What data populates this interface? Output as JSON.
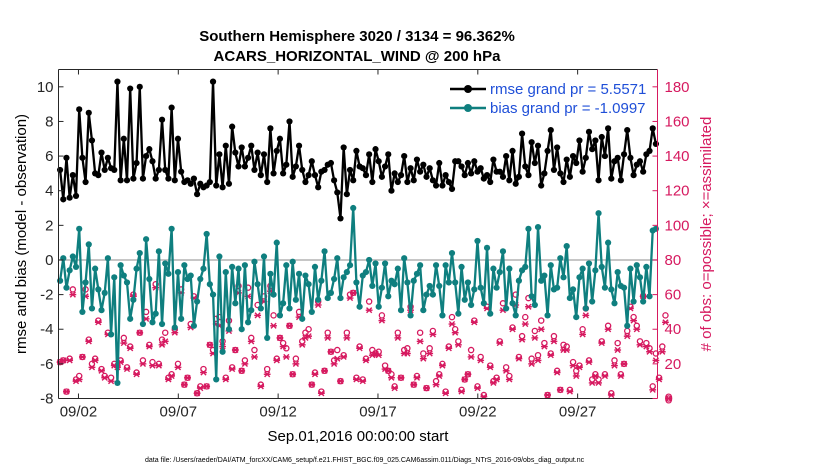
{
  "chart_data": {
    "type": "line",
    "title_line1": "Southern Hemisphere 3020 / 3134 = 96.362%",
    "title_line2": "ACARS_HORIZONTAL_WIND @ 200 hPa",
    "xlabel": "Sep.01,2016 00:00:00 start",
    "ylabel_left": "rmse and bias (model - observation)",
    "ylabel_right": "# of obs: o=possible; ×=assimilated",
    "x_ticks": [
      "09/02",
      "09/07",
      "09/12",
      "09/17",
      "09/22",
      "09/27"
    ],
    "x_tick_days": [
      2,
      7,
      12,
      17,
      22,
      27
    ],
    "xlim": [
      1.0,
      31.0
    ],
    "ylim_left": [
      -8,
      11
    ],
    "y_ticks_left": [
      -8,
      -6,
      -4,
      -2,
      0,
      2,
      4,
      6,
      8,
      10
    ],
    "ylim_right": [
      0,
      190
    ],
    "y_ticks_right": [
      0,
      20,
      40,
      60,
      80,
      100,
      120,
      140,
      160,
      180
    ],
    "legend": {
      "position": "top-right",
      "rmse_label": "rmse grand pr = 5.5571",
      "bias_label": "bias grand pr = -1.0997"
    },
    "zero_line": 0,
    "grid": false,
    "footer": "data file: /Users/raeder/DAI/ATM_forcXX/CAM6_setup/f.e21.FHIST_BGC.f09_025.CAM6assim.011/Diags_NTrS_2016-09/obs_diag_output.nc",
    "colors": {
      "rmse": "#000000",
      "bias": "#0f7f7f",
      "obs": "#d6195f",
      "right_axis": "#d6195f",
      "legend_text": "#1f4fd8",
      "zero_line": "#b4b4b4"
    },
    "series": [
      {
        "name": "rmse",
        "axis": "left",
        "values": [
          5.2,
          3.5,
          5.9,
          3.6,
          4.9,
          3.7,
          8.7,
          5.9,
          4.5,
          8.5,
          6.9,
          5.0,
          4.9,
          6.2,
          5.2,
          5.9,
          5.3,
          5.2,
          10.3,
          4.6,
          7.0,
          4.6,
          9.9,
          4.7,
          5.6,
          10.0,
          4.7,
          6.0,
          6.4,
          5.7,
          4.7,
          5.2,
          8.1,
          5.2,
          4.7,
          8.8,
          4.6,
          7.0,
          5.1,
          4.5,
          4.6,
          4.4,
          4.7,
          3.8,
          4.4,
          4.2,
          4.3,
          4.5,
          10.3,
          4.3,
          6.1,
          4.2,
          6.6,
          4.4,
          7.7,
          6.2,
          5.4,
          6.5,
          5.4,
          5.9,
          6.6,
          5.2,
          6.2,
          4.9,
          6.1,
          4.5,
          7.6,
          5.0,
          6.3,
          7.0,
          5.0,
          5.5,
          8.0,
          4.8,
          5.4,
          6.6,
          5.2,
          4.5,
          4.9,
          5.7,
          4.9,
          4.2,
          5.1,
          5.2,
          5.5,
          5.6,
          4.6,
          3.9,
          2.4,
          6.5,
          3.8,
          5.2,
          4.6,
          6.3,
          5.4,
          5.3,
          4.9,
          6.1,
          4.5,
          6.4,
          5.7,
          4.8,
          5.4,
          6.1,
          4.0,
          5.0,
          4.5,
          4.9,
          6.0,
          4.5,
          5.3,
          4.6,
          5.8,
          5.1,
          5.5,
          4.8,
          5.3,
          4.6,
          4.3,
          5.6,
          4.3,
          4.9,
          4.5,
          4.1,
          5.7,
          5.7,
          5.4,
          4.9,
          5.6,
          5.0,
          5.7,
          5.1,
          5.3,
          4.7,
          4.9,
          4.5,
          5.8,
          5.1,
          5.1,
          4.8,
          6.0,
          4.6,
          6.3,
          4.4,
          4.8,
          7.3,
          5.4,
          4.9,
          6.8,
          5.6,
          6.6,
          4.3,
          5.0,
          6.3,
          7.5,
          5.2,
          6.5,
          5.0,
          4.5,
          5.8,
          4.8,
          6.0,
          5.6,
          6.9,
          5.1,
          5.9,
          7.4,
          6.4,
          6.9,
          4.6,
          7.1,
          6.0,
          7.6,
          4.7,
          5.7,
          5.9,
          4.6,
          6.1,
          7.5,
          5.9,
          4.9,
          5.5,
          5.7,
          5.1,
          6.1,
          6.3,
          7.6,
          6.7
        ]
      },
      {
        "name": "bias",
        "axis": "left",
        "values": [
          -1.2,
          0.1,
          -1.6,
          -0.6,
          0.2,
          -0.4,
          1.8,
          -3.0,
          -1.3,
          0.9,
          -2.8,
          -0.5,
          -1.7,
          -2.9,
          -1.9,
          0.1,
          -4.3,
          -1.0,
          -7.1,
          -0.3,
          -0.9,
          -1.3,
          -3.4,
          -2.3,
          -0.5,
          0.4,
          -3.7,
          1.2,
          -1.1,
          -3.6,
          -3.1,
          0.5,
          -3.7,
          -0.2,
          -0.8,
          1.8,
          -3.9,
          -0.7,
          -3.4,
          -0.3,
          -1.1,
          -0.9,
          -3.8,
          -2.4,
          -1.1,
          -0.5,
          1.5,
          -1.4,
          -2.0,
          -6.9,
          0.2,
          -5.3,
          -0.7,
          -4.0,
          -0.4,
          -2.5,
          -0.5,
          -4.0,
          -0.3,
          -3.6,
          -2.9,
          -0.1,
          -1.4,
          -2.8,
          0.2,
          -4.5,
          -0.8,
          -2.0,
          1.0,
          -3.2,
          -2.5,
          -0.3,
          -2.8,
          -0.1,
          -2.3,
          -0.8,
          -3.4,
          -0.9,
          -1.4,
          -3.0,
          -0.4,
          -2.3,
          -1.2,
          0.5,
          -2.2,
          -1.9,
          -1.1,
          0.1,
          -2.2,
          -1.0,
          -0.7,
          -0.3,
          3.0,
          -1.3,
          -2.7,
          -0.9,
          -0.7,
          0.0,
          -1.5,
          -0.2,
          -2.7,
          -1.6,
          -0.2,
          -2.1,
          -1.2,
          -1.4,
          -0.5,
          -2.9,
          0.1,
          -1.3,
          -3.2,
          -1.2,
          -0.8,
          -0.3,
          -2.9,
          -2.0,
          -1.5,
          -2.0,
          -0.3,
          -1.5,
          -3.2,
          -0.3,
          -1.3,
          0.4,
          -1.3,
          -3.1,
          -0.4,
          -2.3,
          -1.3,
          -2.6,
          -1.7,
          1.1,
          -1.6,
          -2.5,
          0.7,
          -3.1,
          -0.5,
          -1.6,
          -0.7,
          0.5,
          -2.8,
          -0.5,
          -2.5,
          -3.2,
          -1.2,
          -0.6,
          -0.4,
          1.8,
          -2.1,
          -2.6,
          1.9,
          -1.2,
          -0.9,
          -3.2,
          -0.3,
          -1.7,
          -1.6,
          0.1,
          -1.0,
          0.8,
          -2.2,
          -1.7,
          -3.3,
          -1.0,
          -0.5,
          -2.8,
          -0.2,
          -2.4,
          -0.6,
          2.7,
          -0.4,
          -1.6,
          1.0,
          -1.7,
          -2.5,
          -0.7,
          -1.5,
          -1.6,
          -3.8,
          -0.5,
          -2.4,
          -0.3,
          -1.0,
          -2.4,
          -0.4,
          -2.1,
          1.7,
          1.8
        ]
      },
      {
        "name": "obs_possible",
        "axis": "right",
        "marker": "o",
        "values": [
          21,
          22,
          4,
          23,
          63,
          11,
          13,
          24,
          63,
          34,
          20,
          23,
          45,
          17,
          13,
          38,
          12,
          20,
          19,
          22,
          35,
          18,
          30,
          60,
          15,
          38,
          22,
          50,
          31,
          21,
          66,
          20,
          34,
          38,
          12,
          14,
          40,
          20,
          63,
          8,
          12,
          43,
          59,
          3,
          7,
          17,
          7,
          31,
          28,
          46,
          47,
          33,
          12,
          45,
          18,
          28,
          65,
          16,
          22,
          64,
          35,
          28,
          54,
          8,
          59,
          17,
          65,
          48,
          23,
          35,
          32,
          29,
          42,
          14,
          23,
          50,
          33,
          38,
          40,
          8,
          15,
          56,
          4,
          16,
          38,
          27,
          22,
          28,
          10,
          25,
          38,
          60,
          61,
          12,
          30,
          11,
          23,
          56,
          28,
          26,
          27,
          48,
          19,
          16,
          14,
          7,
          38,
          12,
          28,
          29,
          53,
          8,
          13,
          38,
          26,
          6,
          29,
          39,
          10,
          14,
          20,
          4,
          30,
          47,
          40,
          33,
          5,
          11,
          14,
          28,
          45,
          7,
          24,
          2,
          53,
          19,
          10,
          12,
          33,
          55,
          18,
          13,
          41,
          60,
          24,
          36,
          47,
          58,
          23,
          39,
          25,
          45,
          32,
          2,
          26,
          36,
          16,
          5,
          31,
          30,
          5,
          21,
          16,
          19,
          40,
          52,
          22,
          11,
          14,
          11,
          33,
          14,
          42,
          3,
          22,
          32,
          14,
          20,
          39,
          53,
          47,
          42,
          33,
          59,
          32,
          29,
          7,
          26,
          12,
          30,
          48,
          0
        ]
      },
      {
        "name": "obs_assimilated",
        "axis": "right",
        "marker": "x",
        "values": [
          21,
          22,
          4,
          22,
          60,
          10,
          11,
          24,
          59,
          33,
          18,
          22,
          44,
          16,
          12,
          37,
          10,
          19,
          18,
          21,
          32,
          17,
          29,
          59,
          14,
          38,
          20,
          46,
          30,
          19,
          64,
          19,
          31,
          33,
          11,
          13,
          38,
          18,
          61,
          8,
          12,
          41,
          58,
          3,
          6,
          15,
          7,
          31,
          26,
          43,
          42,
          30,
          11,
          39,
          17,
          28,
          61,
          16,
          20,
          59,
          33,
          24,
          48,
          7,
          56,
          14,
          62,
          42,
          22,
          35,
          30,
          24,
          42,
          14,
          20,
          47,
          31,
          35,
          36,
          8,
          14,
          54,
          3,
          16,
          35,
          27,
          20,
          23,
          10,
          24,
          35,
          58,
          61,
          11,
          29,
          10,
          22,
          51,
          25,
          26,
          25,
          45,
          17,
          16,
          12,
          6,
          35,
          12,
          26,
          26,
          51,
          8,
          12,
          33,
          23,
          6,
          26,
          37,
          8,
          13,
          19,
          3,
          29,
          43,
          38,
          31,
          4,
          11,
          14,
          24,
          44,
          6,
          22,
          1,
          52,
          18,
          9,
          11,
          32,
          51,
          16,
          11,
          40,
          54,
          23,
          34,
          43,
          53,
          20,
          35,
          22,
          40,
          30,
          2,
          25,
          33,
          15,
          5,
          28,
          28,
          4,
          19,
          13,
          18,
          37,
          48,
          21,
          9,
          13,
          9,
          32,
          13,
          40,
          2,
          19,
          28,
          13,
          20,
          36,
          52,
          45,
          40,
          31,
          59,
          30,
          27,
          5,
          22,
          11,
          27,
          44,
          0
        ]
      }
    ]
  }
}
